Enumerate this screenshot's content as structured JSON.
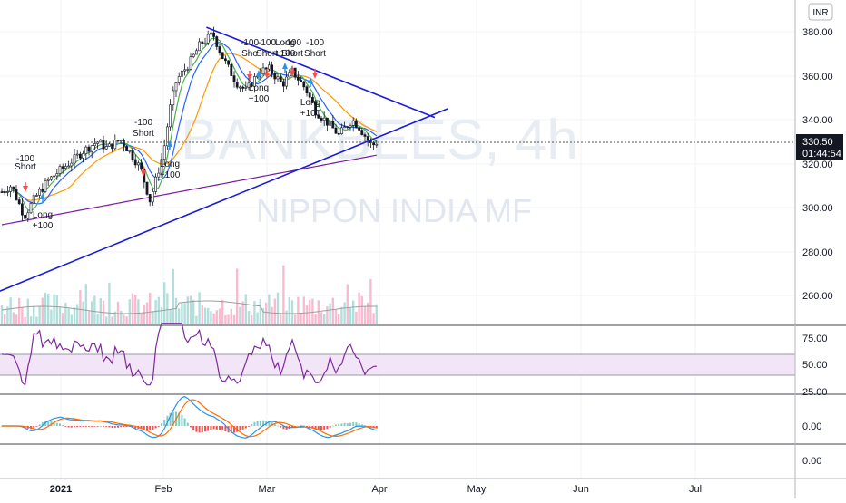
{
  "header": {
    "currency_label": "INR"
  },
  "watermark": {
    "symbol": "BANKBEES, 4h",
    "subtitle": "NIPPON INDIA MF"
  },
  "price_axis": {
    "ticks": [
      "380.00",
      "360.00",
      "340.00",
      "320.00",
      "300.00",
      "280.00",
      "260.00"
    ],
    "last_price": "330.50",
    "countdown": "01:44:54"
  },
  "rsi_axis": {
    "ticks": [
      "75.00",
      "50.00",
      "25.00"
    ]
  },
  "macd_axis": {
    "ticks": [
      "0.00",
      "0.00"
    ]
  },
  "time_axis": {
    "ticks": [
      "2021",
      "Feb",
      "Mar",
      "Apr",
      "May",
      "Jun",
      "Jul"
    ]
  },
  "colors": {
    "up": "#26a69a",
    "down": "#ef5350",
    "trend": "#1a1adb",
    "sma_fast": "#4caf50",
    "sma_mid": "#2962ff",
    "sma_slow": "#ff9800",
    "sma_long": "#7b1fa2",
    "rsi": "#7e2a9e",
    "rsi_band": "#f3e5f8",
    "macd": "#2196f3",
    "signal": "#ff6d00"
  },
  "signals": [
    {
      "type": "short",
      "line1": "-100",
      "line2": "Short",
      "x": 28
    },
    {
      "type": "long",
      "line1": "Long",
      "line2": "+100",
      "x": 47
    },
    {
      "type": "short",
      "line1": "-100",
      "line2": "Short",
      "x": 158
    },
    {
      "type": "long",
      "line1": "Long",
      "line2": "+100",
      "x": 187
    },
    {
      "type": "short",
      "line1": "-100",
      "line2": "Sho",
      "x": 275
    },
    {
      "type": "short",
      "line1": "-100",
      "line2": "Short",
      "x": 294
    },
    {
      "type": "long",
      "line1": "Long",
      "line2": "+100",
      "x": 285
    },
    {
      "type": "long",
      "line1": "Long",
      "line2": "+100",
      "x": 314
    },
    {
      "type": "short",
      "line1": "-100",
      "line2": "Short",
      "x": 322
    },
    {
      "type": "short",
      "line1": "-100",
      "line2": "Short",
      "x": 347
    },
    {
      "type": "long",
      "line1": "Long",
      "line2": "+100",
      "x": 342
    }
  ],
  "chart_data": {
    "type": "candlestick",
    "symbol": "BANKBEES",
    "interval": "4h",
    "ylim": [
      250,
      385
    ],
    "x_ticks": [
      "2021",
      "Feb",
      "Mar",
      "Apr",
      "May",
      "Jun",
      "Jul"
    ],
    "close_series": [
      {
        "date": "2020-12-14",
        "close": 307
      },
      {
        "date": "2020-12-17",
        "close": 310
      },
      {
        "date": "2020-12-21",
        "close": 296
      },
      {
        "date": "2020-12-24",
        "close": 304
      },
      {
        "date": "2020-12-28",
        "close": 312
      },
      {
        "date": "2020-12-31",
        "close": 316
      },
      {
        "date": "2021-01-05",
        "close": 322
      },
      {
        "date": "2021-01-08",
        "close": 326
      },
      {
        "date": "2021-01-12",
        "close": 330
      },
      {
        "date": "2021-01-15",
        "close": 327
      },
      {
        "date": "2021-01-19",
        "close": 331
      },
      {
        "date": "2021-01-22",
        "close": 325
      },
      {
        "date": "2021-01-25",
        "close": 318
      },
      {
        "date": "2021-01-28",
        "close": 303
      },
      {
        "date": "2021-02-01",
        "close": 325
      },
      {
        "date": "2021-02-03",
        "close": 345
      },
      {
        "date": "2021-02-05",
        "close": 358
      },
      {
        "date": "2021-02-09",
        "close": 366
      },
      {
        "date": "2021-02-12",
        "close": 374
      },
      {
        "date": "2021-02-16",
        "close": 379
      },
      {
        "date": "2021-02-19",
        "close": 368
      },
      {
        "date": "2021-02-23",
        "close": 357
      },
      {
        "date": "2021-02-26",
        "close": 353
      },
      {
        "date": "2021-03-02",
        "close": 362
      },
      {
        "date": "2021-03-05",
        "close": 363
      },
      {
        "date": "2021-03-09",
        "close": 356
      },
      {
        "date": "2021-03-12",
        "close": 362
      },
      {
        "date": "2021-03-16",
        "close": 354
      },
      {
        "date": "2021-03-19",
        "close": 344
      },
      {
        "date": "2021-03-23",
        "close": 338
      },
      {
        "date": "2021-03-26",
        "close": 333
      },
      {
        "date": "2021-03-30",
        "close": 340
      },
      {
        "date": "2021-04-01",
        "close": 337
      },
      {
        "date": "2021-04-05",
        "close": 328
      },
      {
        "date": "2021-04-07",
        "close": 330.5
      }
    ],
    "trendlines": [
      {
        "name": "upper",
        "from": {
          "date": "2021-02-14",
          "value": 382
        },
        "to": {
          "date": "2021-04-24",
          "value": 341
        }
      },
      {
        "name": "lower",
        "from": {
          "date": "2020-12-06",
          "value": 262
        },
        "to": {
          "date": "2021-04-28",
          "value": 345
        }
      }
    ],
    "rsi": {
      "ylim": [
        20,
        80
      ],
      "band": [
        40,
        60
      ]
    },
    "last_price": 330.5
  }
}
